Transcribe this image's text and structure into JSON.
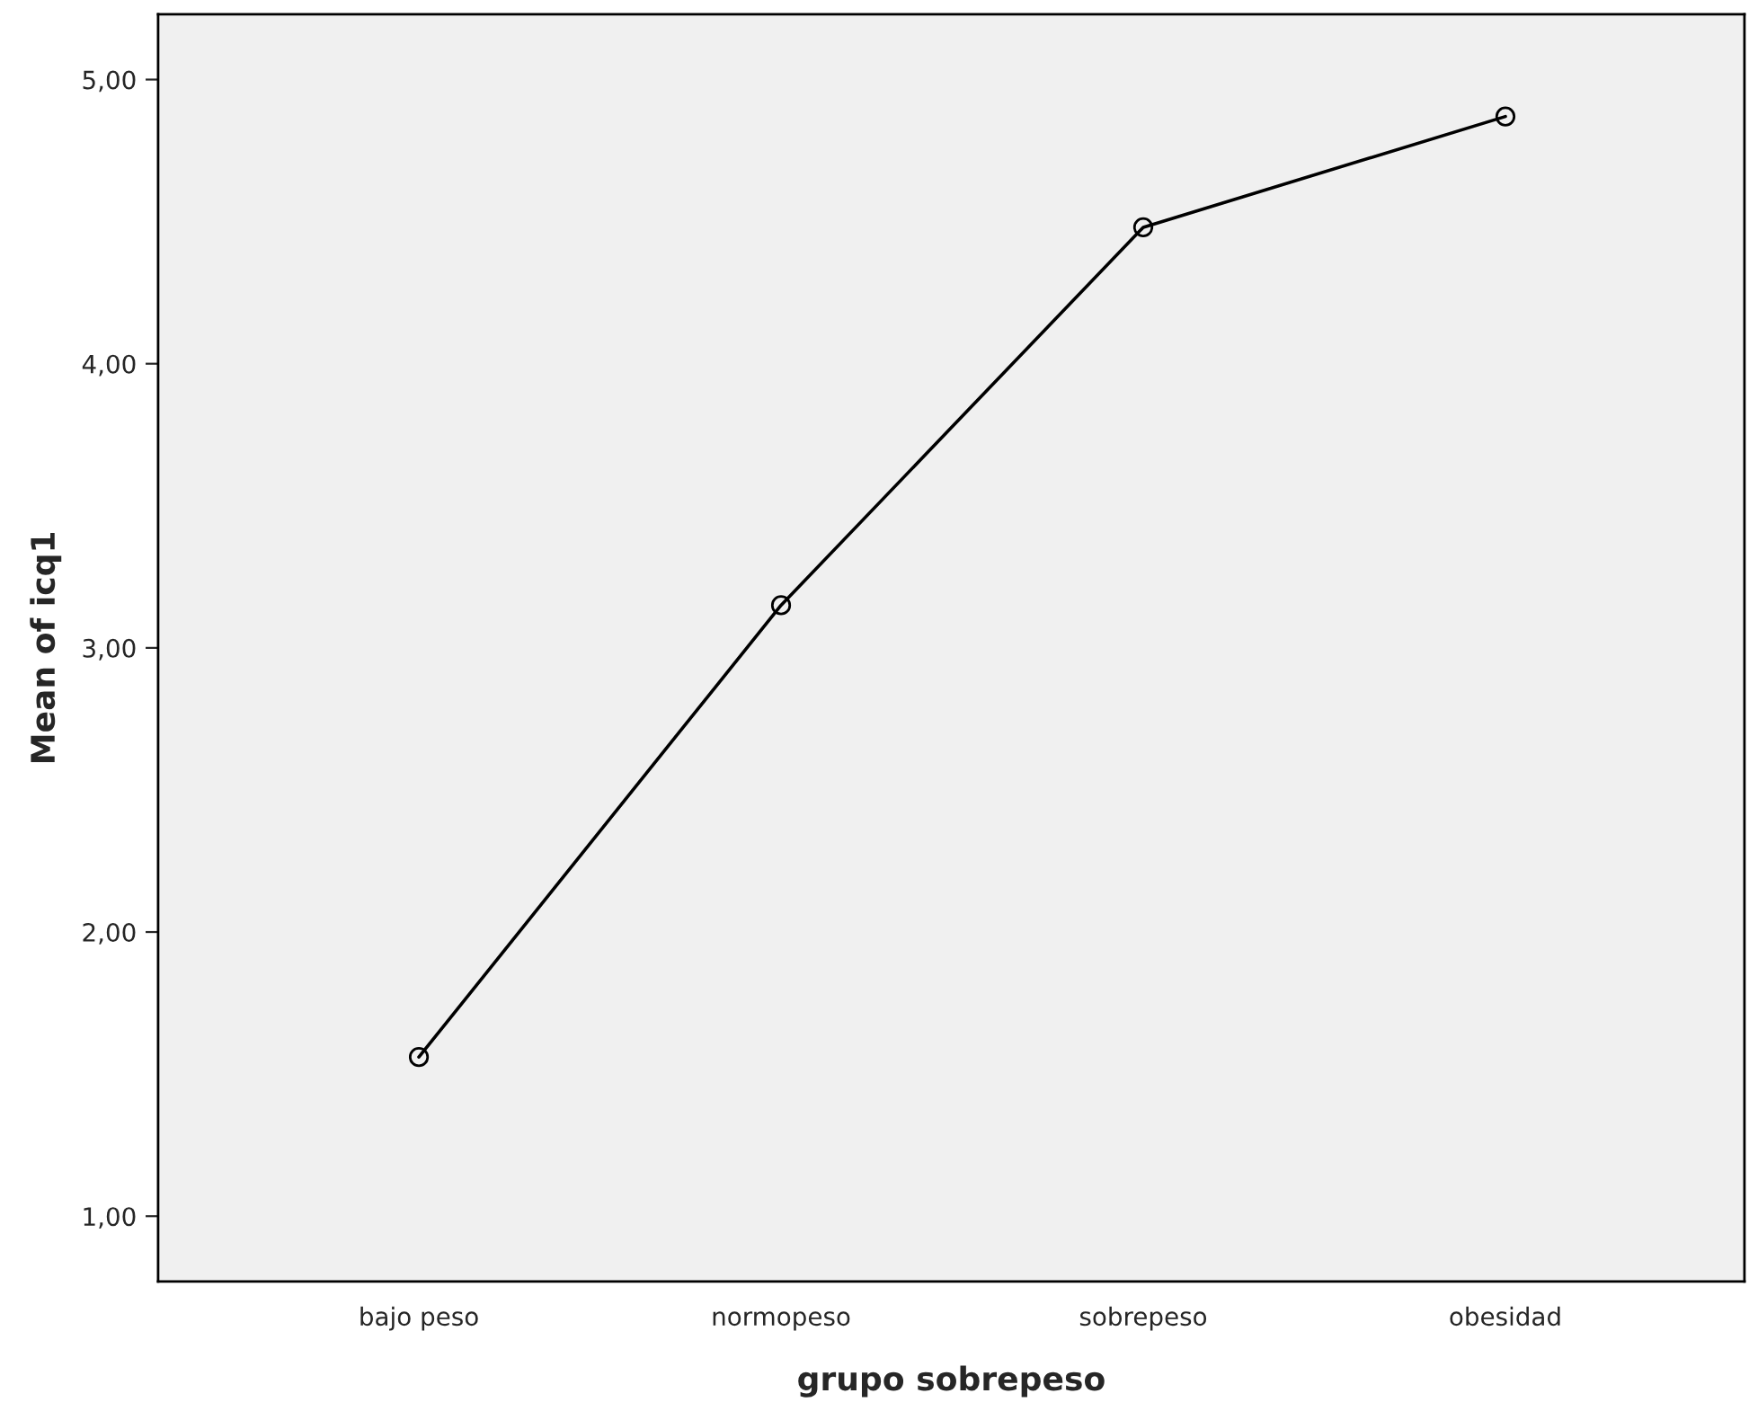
{
  "chart_data": {
    "type": "line",
    "xlabel": "grupo sobrepeso",
    "ylabel": "Mean of icq1",
    "categories": [
      "bajo peso",
      "normopeso",
      "sobrepeso",
      "obesidad"
    ],
    "series": [
      {
        "color": "#000000",
        "values": [
          1.56,
          3.15,
          4.48,
          4.87
        ]
      }
    ],
    "ylim": [
      0.77,
      5.23
    ],
    "yticks": [
      {
        "value": 1,
        "label": "1,00"
      },
      {
        "value": 2,
        "label": "2,00"
      },
      {
        "value": 3,
        "label": "3,00"
      },
      {
        "value": 4,
        "label": "4,00"
      },
      {
        "value": 5,
        "label": "5,00"
      }
    ],
    "marker": "circle",
    "line_style": "solid",
    "grid": false
  }
}
